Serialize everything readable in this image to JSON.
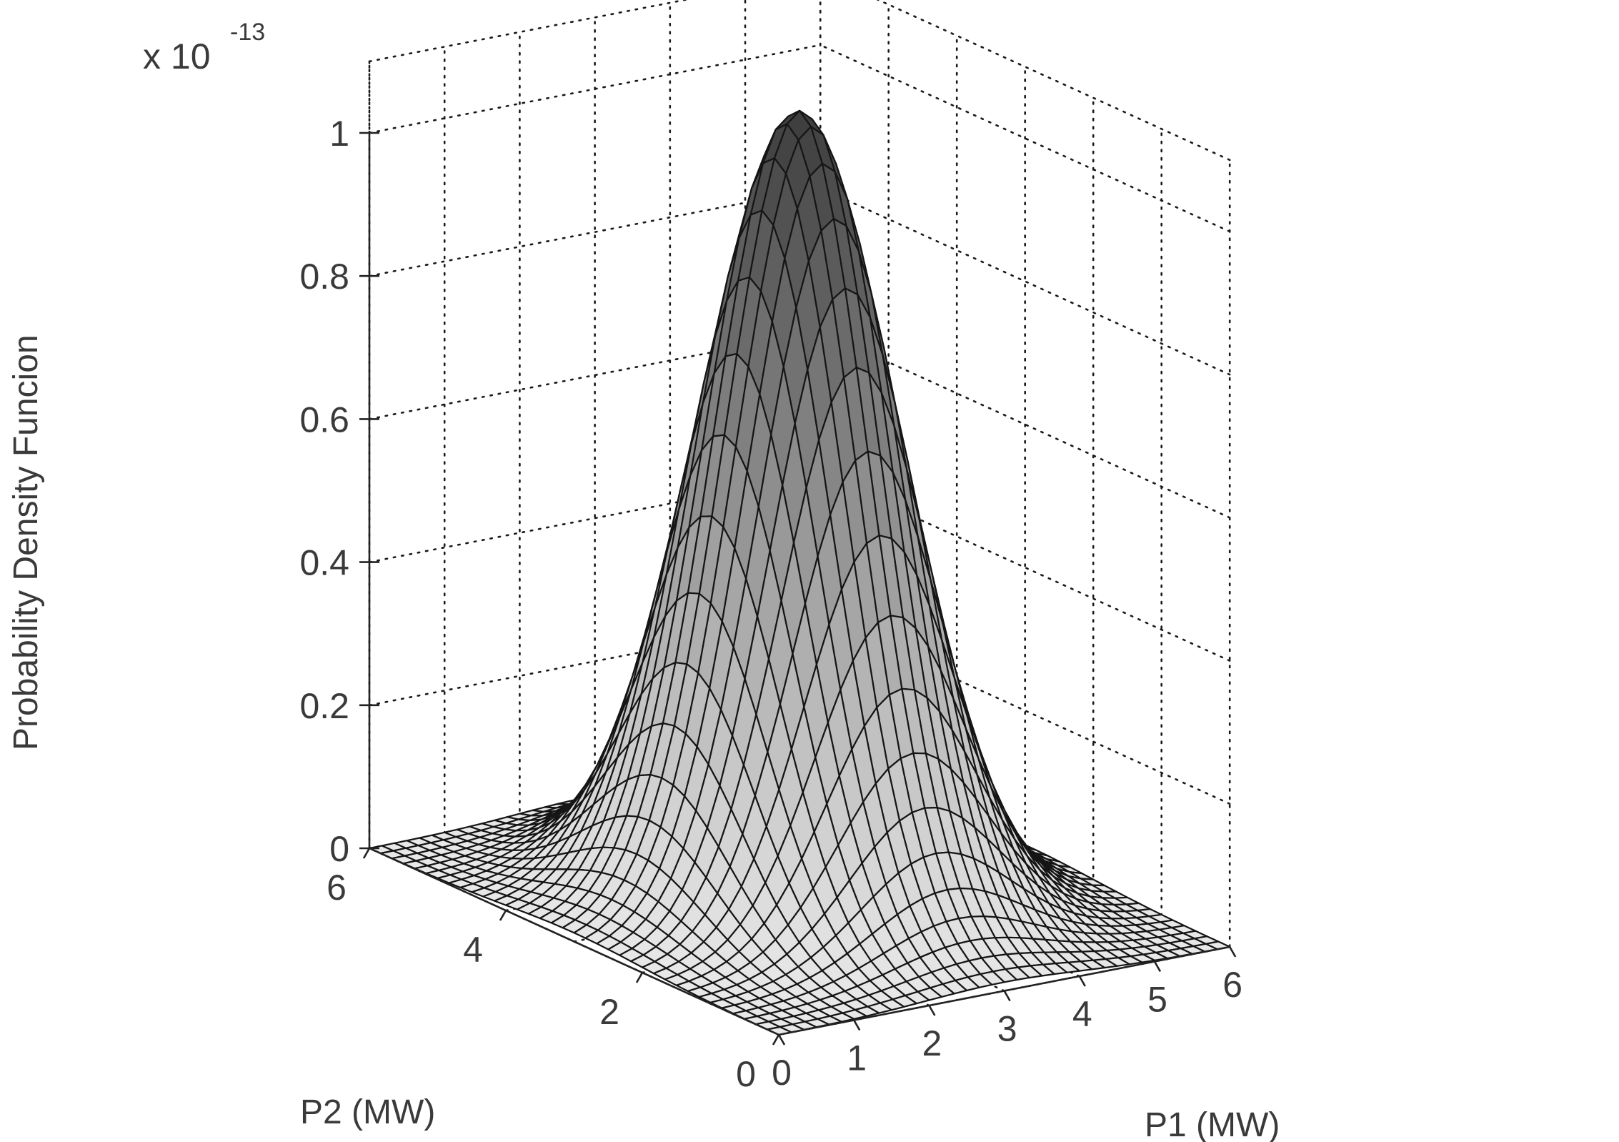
{
  "chart_data": {
    "type": "surface",
    "function": "bivariate normal probability density",
    "mean": [
      3,
      3
    ],
    "zlabel": "Probability Density Funcion",
    "xlabel": "P1 (MW)",
    "ylabel": "P2 (MW)",
    "xlim": [
      0,
      6
    ],
    "ylim": [
      0,
      6
    ],
    "zlim": [
      0,
      1.0
    ],
    "z_multiplier": "x 10",
    "z_exponent": "-13",
    "x_ticks": [
      "0",
      "1",
      "2",
      "3",
      "4",
      "5",
      "6"
    ],
    "y_ticks": [
      "0",
      "2",
      "4",
      "6"
    ],
    "z_ticks": [
      "0",
      "0.2",
      "0.4",
      "0.6",
      "0.8",
      "1"
    ],
    "peak_value": 1.1,
    "grid": true,
    "colormap": "gray"
  }
}
